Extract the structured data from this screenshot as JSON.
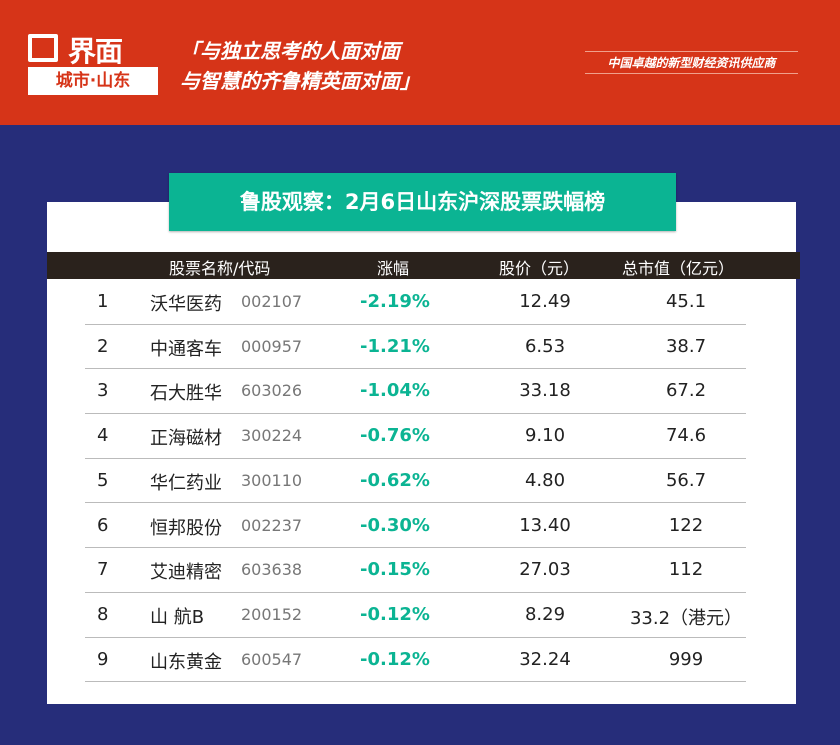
{
  "header": {
    "logo_name": "界面",
    "logo_city": "城市·山东",
    "slogan_line1": "「与独立思考的人面对面",
    "slogan_line2": "与智慧的齐鲁精英面对面」",
    "tagline": "中国卓越的新型财经资讯供应商"
  },
  "title": "鲁股观察：2月6日山东沪深股票跌幅榜",
  "colors": {
    "header_red": "#d63418",
    "navy": "#262d7a",
    "green": "#0bb493"
  },
  "table": {
    "headers": {
      "name": "股票名称/代码",
      "change": "涨幅",
      "price": "股价（元）",
      "cap": "总市值（亿元）"
    },
    "rows": [
      {
        "rank": "1",
        "name": "沃华医药",
        "code": "002107",
        "change": "-2.19%",
        "price": "12.49",
        "cap": "45.1"
      },
      {
        "rank": "2",
        "name": "中通客车",
        "code": "000957",
        "change": "-1.21%",
        "price": "6.53",
        "cap": "38.7"
      },
      {
        "rank": "3",
        "name": "石大胜华",
        "code": "603026",
        "change": "-1.04%",
        "price": "33.18",
        "cap": "67.2"
      },
      {
        "rank": "4",
        "name": "正海磁材",
        "code": "300224",
        "change": "-0.76%",
        "price": "9.10",
        "cap": "74.6"
      },
      {
        "rank": "5",
        "name": "华仁药业",
        "code": "300110",
        "change": "-0.62%",
        "price": "4.80",
        "cap": "56.7"
      },
      {
        "rank": "6",
        "name": "恒邦股份",
        "code": "002237",
        "change": "-0.30%",
        "price": "13.40",
        "cap": "122"
      },
      {
        "rank": "7",
        "name": "艾迪精密",
        "code": "603638",
        "change": "-0.15%",
        "price": "27.03",
        "cap": "112"
      },
      {
        "rank": "8",
        "name": " 山 航B",
        "code": "200152",
        "change": "-0.12%",
        "price": "8.29",
        "cap": "33.2（港元）"
      },
      {
        "rank": "9",
        "name": "山东黄金",
        "code": "600547",
        "change": "-0.12%",
        "price": "32.24",
        "cap": "999"
      }
    ]
  }
}
